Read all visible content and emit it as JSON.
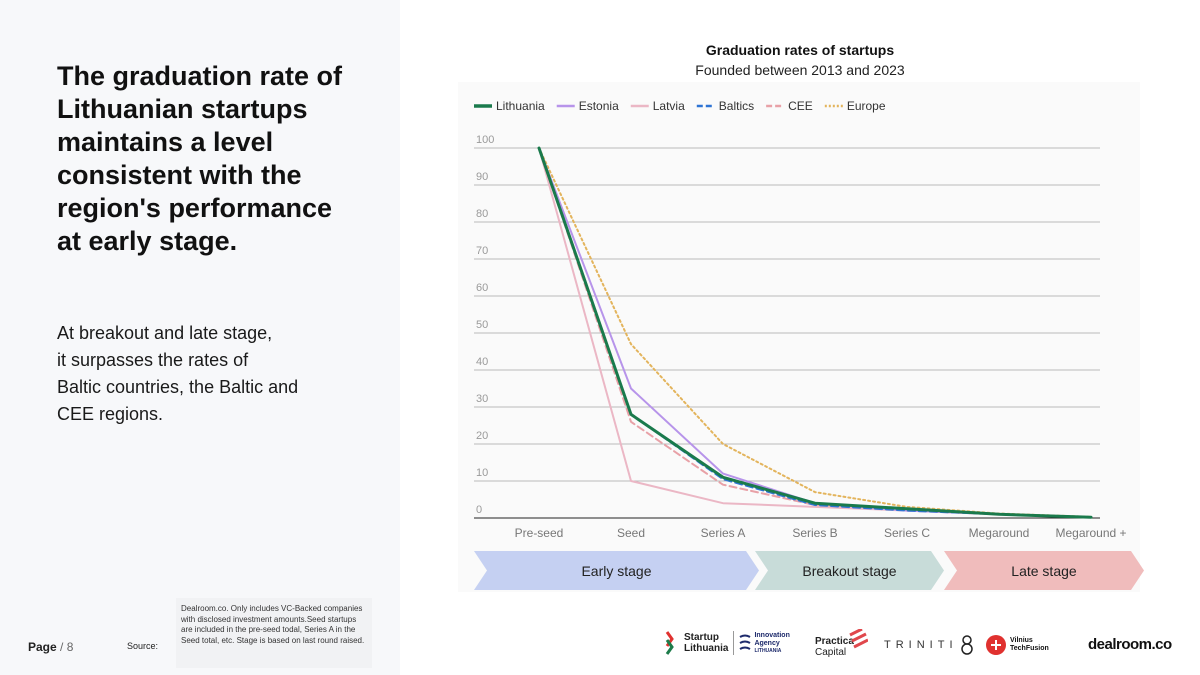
{
  "headline": "The graduation rate of Lithuanian startups maintains a level consistent with the region's performance at early stage.",
  "body_lines": [
    "At breakout and late stage,",
    "it surpasses the rates of",
    "Baltic countries, the Baltic and",
    "CEE regions."
  ],
  "footer": {
    "page_label": "Page",
    "page_total": " / 8",
    "source_label": "Source:",
    "source_text": "Dealroom.co. Only includes VC-Backed companies with disclosed investment amounts.Seed startups are included in the pre-seed todal, Series A in the Seed total, etc. Stage is based on last round raised."
  },
  "stages": {
    "early": "Early stage",
    "breakout": "Breakout stage",
    "late": "Late stage"
  },
  "logos": {
    "startup_lithuania_line1": "Startup",
    "startup_lithuania_line2": "Lithuania",
    "innovation_agency_line1": "Innovation",
    "innovation_agency_line2": "Agency",
    "innovation_agency_line3": "LITHUANIA",
    "practica_line1": "Practica",
    "practica_line2": "Capital",
    "triniti": "TRINITI",
    "vilnius_line1": "Vilnius",
    "vilnius_line2": "TechFusion",
    "dealroom": "dealroom.co"
  },
  "chart_data": {
    "type": "line",
    "title": "Graduation rates of startups",
    "subtitle": "Founded between 2013 and 2023",
    "xlabel": "",
    "ylabel": "",
    "ylim": [
      0,
      100
    ],
    "yticks": [
      0,
      10,
      20,
      30,
      40,
      50,
      60,
      70,
      80,
      90,
      100
    ],
    "grid": true,
    "legend_position": "top-left",
    "categories": [
      "Pre-seed",
      "Seed",
      "Series A",
      "Series B",
      "Series C",
      "Megaround",
      "Megaround +"
    ],
    "series": [
      {
        "name": "Lithuania",
        "color": "#1a7a4c",
        "style": "solid",
        "width": 3,
        "values": [
          100,
          28,
          11,
          4,
          2.5,
          1,
          0.2
        ]
      },
      {
        "name": "Estonia",
        "color": "#b794ea",
        "style": "solid",
        "width": 2,
        "values": [
          100,
          35,
          12,
          4,
          2,
          1,
          0.2
        ]
      },
      {
        "name": "Latvia",
        "color": "#ebb7c5",
        "style": "solid",
        "width": 2,
        "values": [
          100,
          10,
          4,
          3,
          2,
          1,
          0.2
        ]
      },
      {
        "name": "Baltics",
        "color": "#2e74d4",
        "style": "dash",
        "width": 2,
        "values": [
          100,
          28,
          10.5,
          3.5,
          2,
          1,
          0.2
        ]
      },
      {
        "name": "CEE",
        "color": "#e8a1a7",
        "style": "dash",
        "width": 2,
        "values": [
          100,
          26,
          9,
          3.5,
          2,
          1,
          0.2
        ]
      },
      {
        "name": "Europe",
        "color": "#e3b45c",
        "style": "dot",
        "width": 2,
        "values": [
          100,
          47,
          20,
          7,
          3,
          1.2,
          0.3
        ]
      }
    ]
  }
}
